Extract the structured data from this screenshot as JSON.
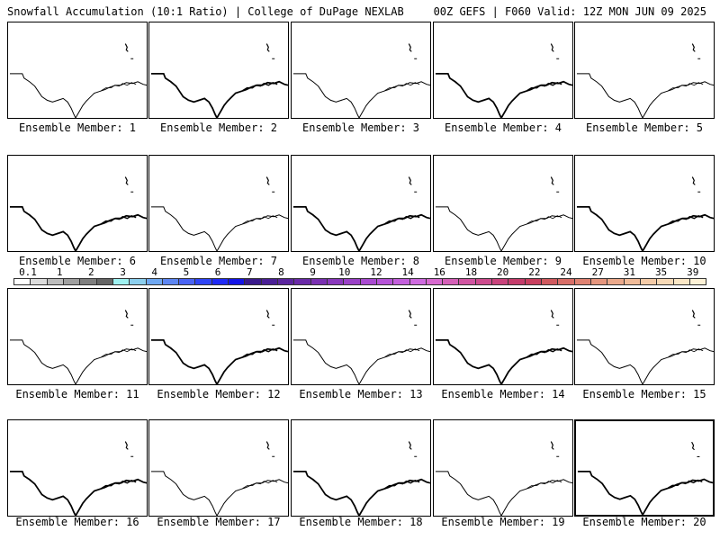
{
  "header": {
    "left_title": "Snowfall Accumulation (10:1 Ratio) | College of DuPage NEXLAB",
    "right_title": "00Z GEFS | F060 Valid: 12Z MON JUN 09 2025"
  },
  "map_features": [
    "coastline",
    "state-borders"
  ],
  "members": [
    {
      "label": "Ensemble Member: 1"
    },
    {
      "label": "Ensemble Member: 2"
    },
    {
      "label": "Ensemble Member: 3"
    },
    {
      "label": "Ensemble Member: 4"
    },
    {
      "label": "Ensemble Member: 5"
    },
    {
      "label": "Ensemble Member: 6"
    },
    {
      "label": "Ensemble Member: 7"
    },
    {
      "label": "Ensemble Member: 8"
    },
    {
      "label": "Ensemble Member: 9"
    },
    {
      "label": "Ensemble Member: 10"
    },
    {
      "label": "Ensemble Member: 11"
    },
    {
      "label": "Ensemble Member: 12"
    },
    {
      "label": "Ensemble Member: 13"
    },
    {
      "label": "Ensemble Member: 14"
    },
    {
      "label": "Ensemble Member: 15"
    },
    {
      "label": "Ensemble Member: 16"
    },
    {
      "label": "Ensemble Member: 17"
    },
    {
      "label": "Ensemble Member: 18"
    },
    {
      "label": "Ensemble Member: 19"
    },
    {
      "label": "Ensemble Member: 20"
    }
  ],
  "selected_member": "Ensemble Member: 20",
  "colorbar": {
    "labels": [
      "0.1",
      "1",
      "2",
      "3",
      "4",
      "5",
      "6",
      "7",
      "8",
      "9",
      "10",
      "12",
      "14",
      "16",
      "18",
      "20",
      "22",
      "24",
      "27",
      "31",
      "35",
      "39"
    ],
    "colors": [
      "#ffffff",
      "#dcdcdc",
      "#bdbdbd",
      "#a0a0a0",
      "#7f7f7f",
      "#666666",
      "#9ff1f1",
      "#8ccfee",
      "#6fa8f2",
      "#5d86f2",
      "#4a64f5",
      "#2f45f6",
      "#1f2af7",
      "#1414e8",
      "#3a1a8c",
      "#4a1f96",
      "#5b259f",
      "#6a2aa8",
      "#7a30b2",
      "#8a38bd",
      "#9a41c7",
      "#a94ad1",
      "#b653d8",
      "#c35fdc",
      "#cf6be0",
      "#d86ad0",
      "#d560b8",
      "#d155a2",
      "#cd4b8e",
      "#c9437c",
      "#c53d6c",
      "#c93f5f",
      "#d05a5f",
      "#d86e68",
      "#df8272",
      "#e5967e",
      "#eba98b",
      "#f0bb99",
      "#f4cba8",
      "#f8dab7",
      "#fbe7c6",
      "#fdf1d6"
    ]
  }
}
